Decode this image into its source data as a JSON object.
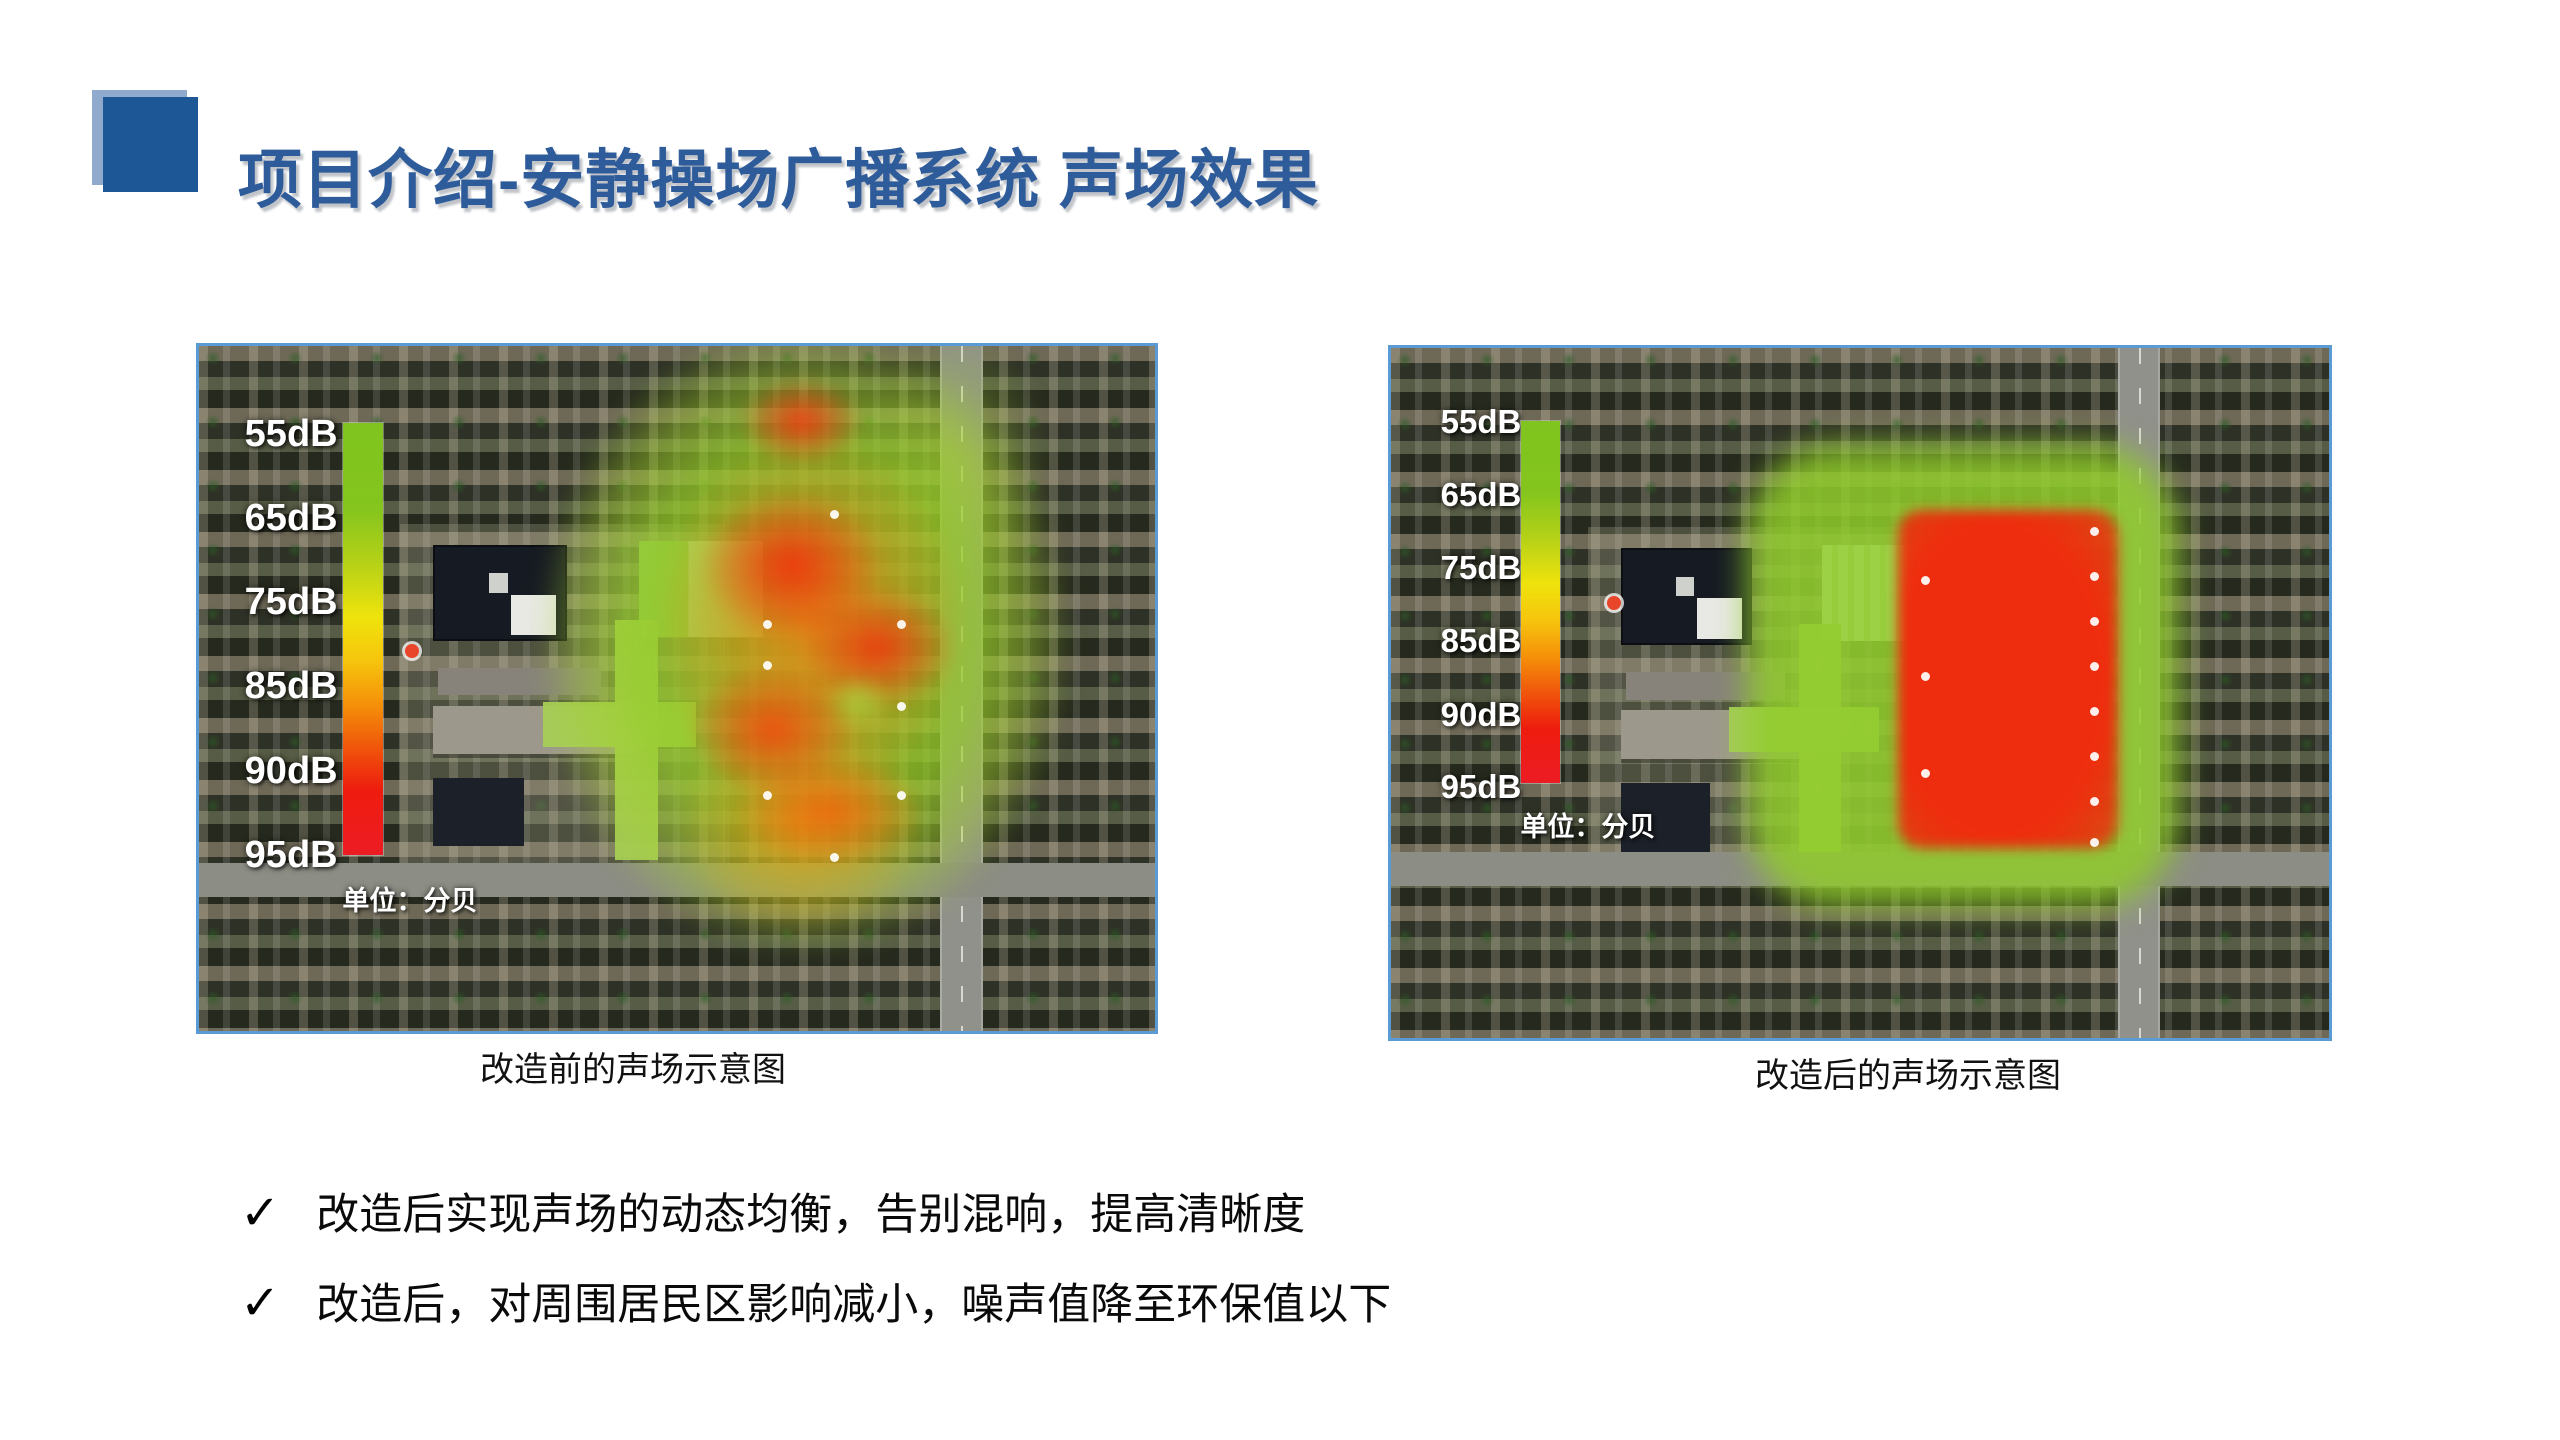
{
  "slide": {
    "title": "项目介绍-安静操场广播系统 声场效果",
    "background_color": "#FFFFFF",
    "title_color": "#2E5B9A",
    "accent_square_dark": "#1E5796",
    "accent_square_light": "#8FAACC",
    "image_border_color": "#5B9BD5"
  },
  "legend": {
    "labels": [
      "55dB",
      "65dB",
      "75dB",
      "85dB",
      "90dB",
      "95dB"
    ],
    "unit_label": "单位：分贝",
    "gradient_top_color": "#7FC41F",
    "gradient_bottom_color": "#ED1C24"
  },
  "panels": [
    {
      "caption": "改造前的声场示意图"
    },
    {
      "caption": "改造后的声场示意图"
    }
  ],
  "bullets": {
    "mark": "✓",
    "items": [
      "改造后实现声场的动态均衡，告别混响，提高清晰度",
      "改造后，对周围居民区影响减小，噪声值降至环保值以下"
    ]
  }
}
